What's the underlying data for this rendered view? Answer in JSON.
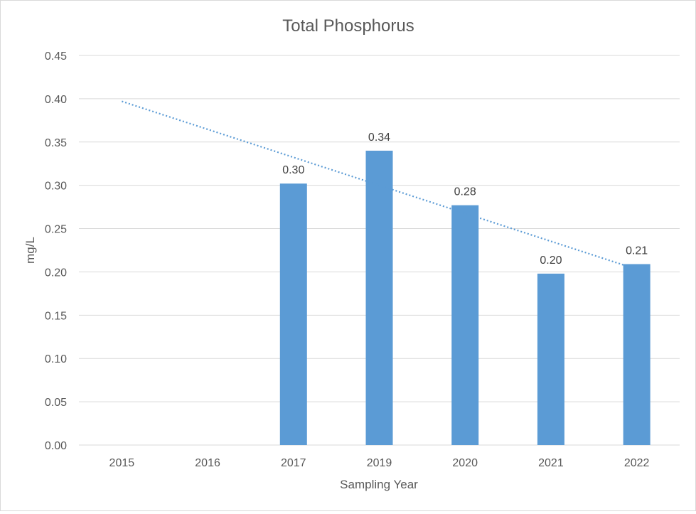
{
  "chart_data": {
    "type": "bar",
    "title": "Total Phosphorus",
    "xlabel": "Sampling Year",
    "ylabel": "mg/L",
    "categories": [
      "2015",
      "2016",
      "2017",
      "2019",
      "2020",
      "2021",
      "2022"
    ],
    "series": [
      {
        "values": [
          null,
          null,
          0.302,
          0.34,
          0.277,
          0.198,
          0.209
        ],
        "data_labels": [
          "",
          "",
          "0.30",
          "0.34",
          "0.28",
          "0.20",
          "0.21"
        ]
      }
    ],
    "trendline": {
      "type": "linear",
      "style": "dotted",
      "start": 0.397,
      "end": 0.203
    },
    "ylim": [
      0,
      0.45
    ],
    "yticks": [
      "0.00",
      "0.05",
      "0.10",
      "0.15",
      "0.20",
      "0.25",
      "0.30",
      "0.35",
      "0.40",
      "0.45"
    ],
    "grid": true,
    "legend": "none",
    "colors": {
      "bar": "#5b9bd5",
      "trendline": "#5b9bd5",
      "grid": "#d9d9d9",
      "text": "#595959",
      "title": "#595959"
    }
  }
}
